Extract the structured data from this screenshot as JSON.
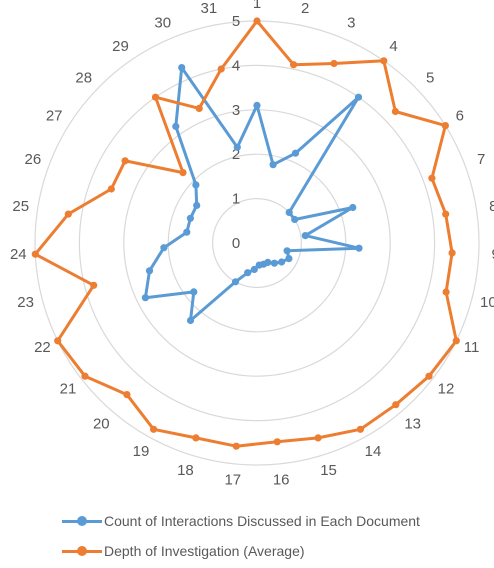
{
  "chart_data": {
    "type": "radar",
    "categories": [
      "1",
      "2",
      "3",
      "4",
      "5",
      "6",
      "7",
      "8",
      "9",
      "10",
      "11",
      "12",
      "13",
      "14",
      "15",
      "16",
      "17",
      "18",
      "19",
      "20",
      "21",
      "22",
      "23",
      "24",
      "25",
      "26",
      "27",
      "28",
      "29",
      "30",
      "31"
    ],
    "radial_ticks": [
      "0",
      "1",
      "2",
      "3",
      "4",
      "5"
    ],
    "rmax": 5,
    "series": [
      {
        "name": "Count of Interactions Discussed in Each Document",
        "color": "#5B9BD5",
        "values": [
          3.1,
          1.8,
          2.2,
          4,
          1,
          1,
          2.3,
          1.1,
          2.3,
          0.7,
          0.8,
          0.7,
          0.6,
          0.5,
          0.5,
          0.5,
          0.6,
          0.7,
          1,
          2.3,
          1.8,
          2.8,
          2.5,
          2.1,
          1.6,
          1.6,
          1.6,
          1.9,
          3.2,
          4.3,
          2.2
        ]
      },
      {
        "name": "Depth of Investigation (Average)",
        "color": "#ED7D31",
        "values": [
          5,
          4.1,
          4.4,
          5,
          4.3,
          5,
          4.2,
          4.3,
          4.4,
          4.4,
          5,
          4.9,
          4.8,
          4.8,
          4.6,
          4.5,
          4.6,
          4.6,
          4.8,
          4.5,
          4.9,
          5,
          3.8,
          5,
          4.3,
          3.5,
          3.5,
          2.3,
          4,
          3.3,
          4
        ]
      }
    ]
  }
}
